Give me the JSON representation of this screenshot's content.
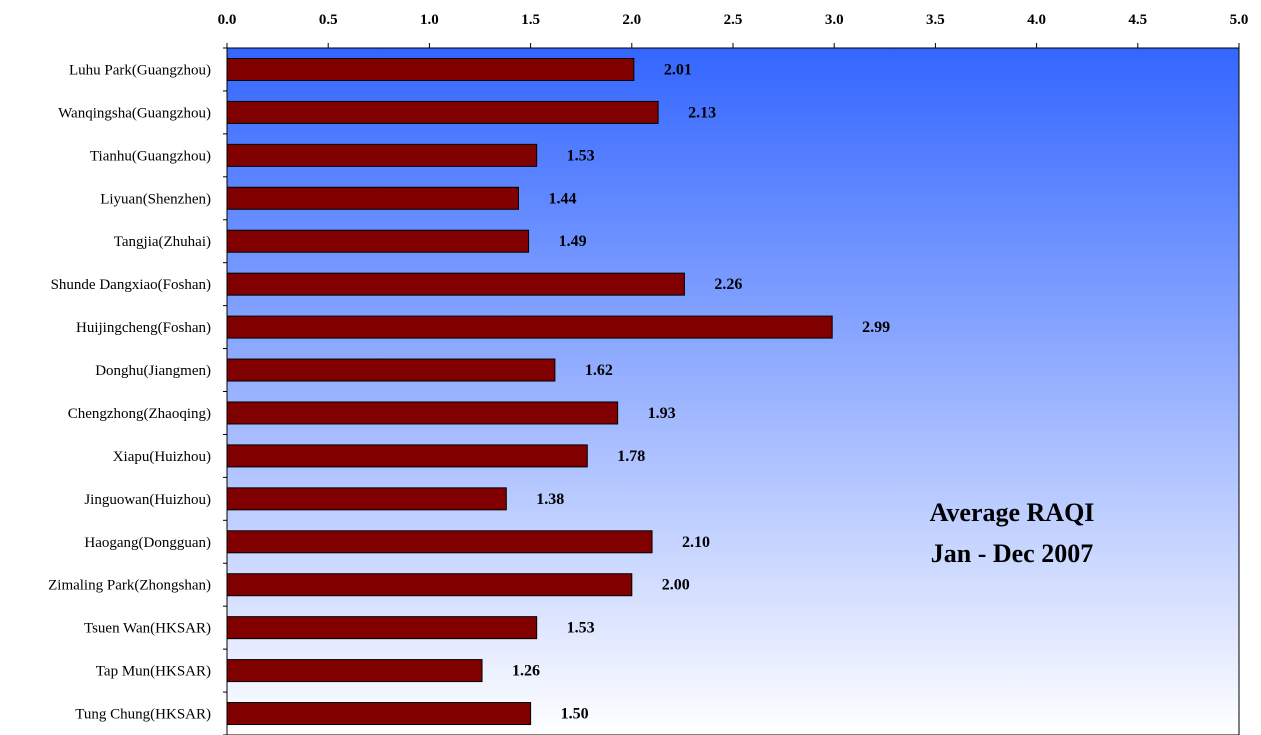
{
  "chart_data": {
    "type": "bar",
    "orientation": "horizontal",
    "categories": [
      "Luhu Park(Guangzhou)",
      "Wanqingsha(Guangzhou)",
      "Tianhu(Guangzhou)",
      "Liyuan(Shenzhen)",
      "Tangjia(Zhuhai)",
      "Shunde Dangxiao(Foshan)",
      "Huijingcheng(Foshan)",
      "Donghu(Jiangmen)",
      "Chengzhong(Zhaoqing)",
      "Xiapu(Huizhou)",
      "Jinguowan(Huizhou)",
      "Haogang(Dongguan)",
      "Zimaling Park(Zhongshan)",
      "Tsuen Wan(HKSAR)",
      "Tap Mun(HKSAR)",
      "Tung Chung(HKSAR)"
    ],
    "values": [
      2.01,
      2.13,
      1.53,
      1.44,
      1.49,
      2.26,
      2.99,
      1.62,
      1.93,
      1.78,
      1.38,
      2.1,
      2.0,
      1.53,
      1.26,
      1.5
    ],
    "value_labels": [
      "2.01",
      "2.13",
      "1.53",
      "1.44",
      "1.49",
      "2.26",
      "2.99",
      "1.62",
      "1.93",
      "1.78",
      "1.38",
      "2.10",
      "2.00",
      "1.53",
      "1.26",
      "1.50"
    ],
    "x_ticks": [
      "0.0",
      "0.5",
      "1.0",
      "1.5",
      "2.0",
      "2.5",
      "3.0",
      "3.5",
      "4.0",
      "4.5",
      "5.0"
    ],
    "xlim": [
      0,
      5
    ],
    "x_axis_position": "top",
    "grid": false,
    "legend": "none",
    "annotation": [
      "Average RAQI",
      "Jan - Dec 2007"
    ],
    "title": "",
    "xlabel": "",
    "ylabel": "",
    "colors": {
      "bar": "#800000",
      "bar_edge": "#000000",
      "plot_gradient_top": "#3366ff",
      "plot_gradient_bottom": "#ffffff",
      "axis": "#000000"
    }
  }
}
